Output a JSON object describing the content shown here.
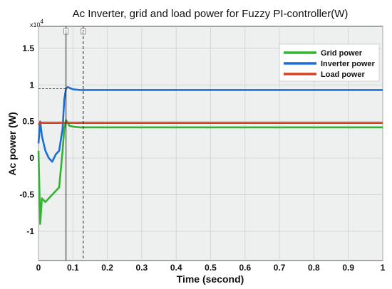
{
  "chart_data": {
    "type": "line",
    "title": "Ac Inverter, grid and load power for Fuzzy PI-controller(W)",
    "xlabel": "Time (second)",
    "ylabel": "Ac power (W)",
    "y_multiplier_label": "x10",
    "y_multiplier_exponent": "4",
    "xlim": [
      0,
      1
    ],
    "ylim": [
      -1.4,
      1.8
    ],
    "x_ticks": [
      "0",
      "0.1",
      "0.2",
      "0.3",
      "0.4",
      "0.5",
      "0.6",
      "0.7",
      "0.8",
      "0.9",
      "1"
    ],
    "x_tick_values": [
      0,
      0.1,
      0.2,
      0.3,
      0.4,
      0.5,
      0.6,
      0.7,
      0.8,
      0.9,
      1
    ],
    "y_ticks": [
      "-1",
      "-0.5",
      "0",
      "0.5",
      "1",
      "1.5"
    ],
    "y_tick_values": [
      -1,
      -0.5,
      0,
      0.5,
      1,
      1.5
    ],
    "grid": true,
    "legend_position": "top-right",
    "series": [
      {
        "name": "Grid power",
        "color": "#2fb52f",
        "x": [
          0,
          0.005,
          0.01,
          0.02,
          0.03,
          0.04,
          0.05,
          0.06,
          0.07,
          0.075,
          0.08,
          0.085,
          0.09,
          0.1,
          0.12,
          0.15,
          0.2,
          0.4,
          0.6,
          0.8,
          1.0
        ],
        "y": [
          0.1,
          -0.9,
          -0.55,
          -0.6,
          -0.55,
          -0.5,
          -0.45,
          -0.4,
          0.1,
          0.4,
          0.52,
          0.48,
          0.44,
          0.43,
          0.42,
          0.42,
          0.42,
          0.42,
          0.42,
          0.42,
          0.42
        ]
      },
      {
        "name": "Inverter power",
        "color": "#1a6fd6",
        "x": [
          0,
          0.005,
          0.01,
          0.02,
          0.03,
          0.04,
          0.05,
          0.06,
          0.07,
          0.075,
          0.08,
          0.085,
          0.09,
          0.1,
          0.12,
          0.15,
          0.2,
          0.4,
          0.6,
          0.8,
          1.0
        ],
        "y": [
          0.2,
          0.5,
          0.3,
          0.1,
          0.0,
          -0.05,
          0.05,
          0.1,
          0.4,
          0.8,
          0.95,
          0.97,
          0.96,
          0.94,
          0.93,
          0.93,
          0.93,
          0.93,
          0.93,
          0.93,
          0.93
        ]
      },
      {
        "name": "Load power",
        "color": "#d9411e",
        "x": [
          0,
          0.005,
          0.01,
          0.02,
          0.05,
          0.08,
          0.1,
          0.2,
          0.4,
          0.6,
          0.8,
          1.0
        ],
        "y": [
          0.45,
          0.49,
          0.48,
          0.48,
          0.48,
          0.48,
          0.48,
          0.48,
          0.48,
          0.48,
          0.48,
          0.48
        ]
      }
    ],
    "cursors": [
      {
        "x": 0.08,
        "style": "solid",
        "tag": "1"
      },
      {
        "x": 0.13,
        "style": "dashed",
        "tag": "2"
      }
    ],
    "reference_line": {
      "y": 0.95,
      "style": "dashed"
    }
  }
}
